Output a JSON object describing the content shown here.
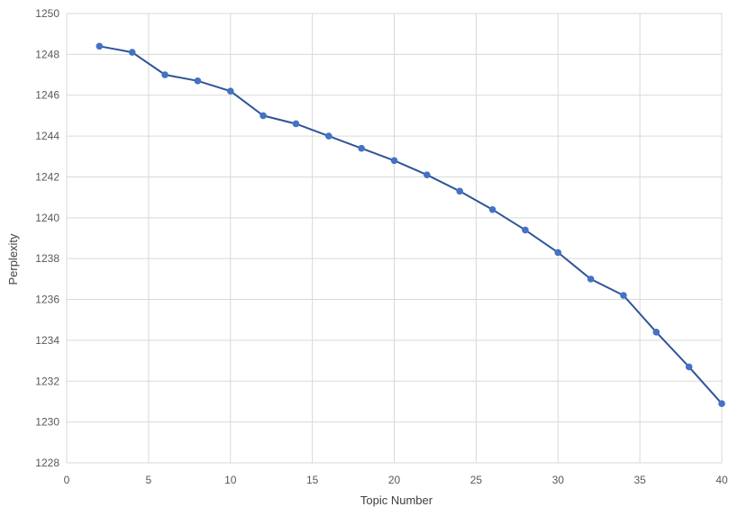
{
  "chart_data": {
    "type": "line",
    "xlabel": "Topic Number",
    "ylabel": "Perplexity",
    "xlim": [
      0,
      40
    ],
    "ylim": [
      1228,
      1250
    ],
    "xticks": [
      0,
      5,
      10,
      15,
      20,
      25,
      30,
      35,
      40
    ],
    "yticks": [
      1228,
      1230,
      1232,
      1234,
      1236,
      1238,
      1240,
      1242,
      1244,
      1246,
      1248,
      1250
    ],
    "grid": true,
    "legend": "none",
    "series": [
      {
        "color": "#2f5597",
        "marker_color": "#4472c4",
        "x": [
          2,
          4,
          6,
          8,
          10,
          12,
          14,
          16,
          18,
          20,
          22,
          24,
          26,
          28,
          30,
          32,
          34,
          36,
          38,
          40
        ],
        "y": [
          1248.4,
          1248.1,
          1247.0,
          1246.7,
          1246.2,
          1245.0,
          1244.6,
          1244.0,
          1243.4,
          1242.8,
          1242.1,
          1241.3,
          1240.4,
          1239.4,
          1238.3,
          1237.0,
          1236.2,
          1234.4,
          1232.7,
          1230.9
        ]
      }
    ]
  }
}
